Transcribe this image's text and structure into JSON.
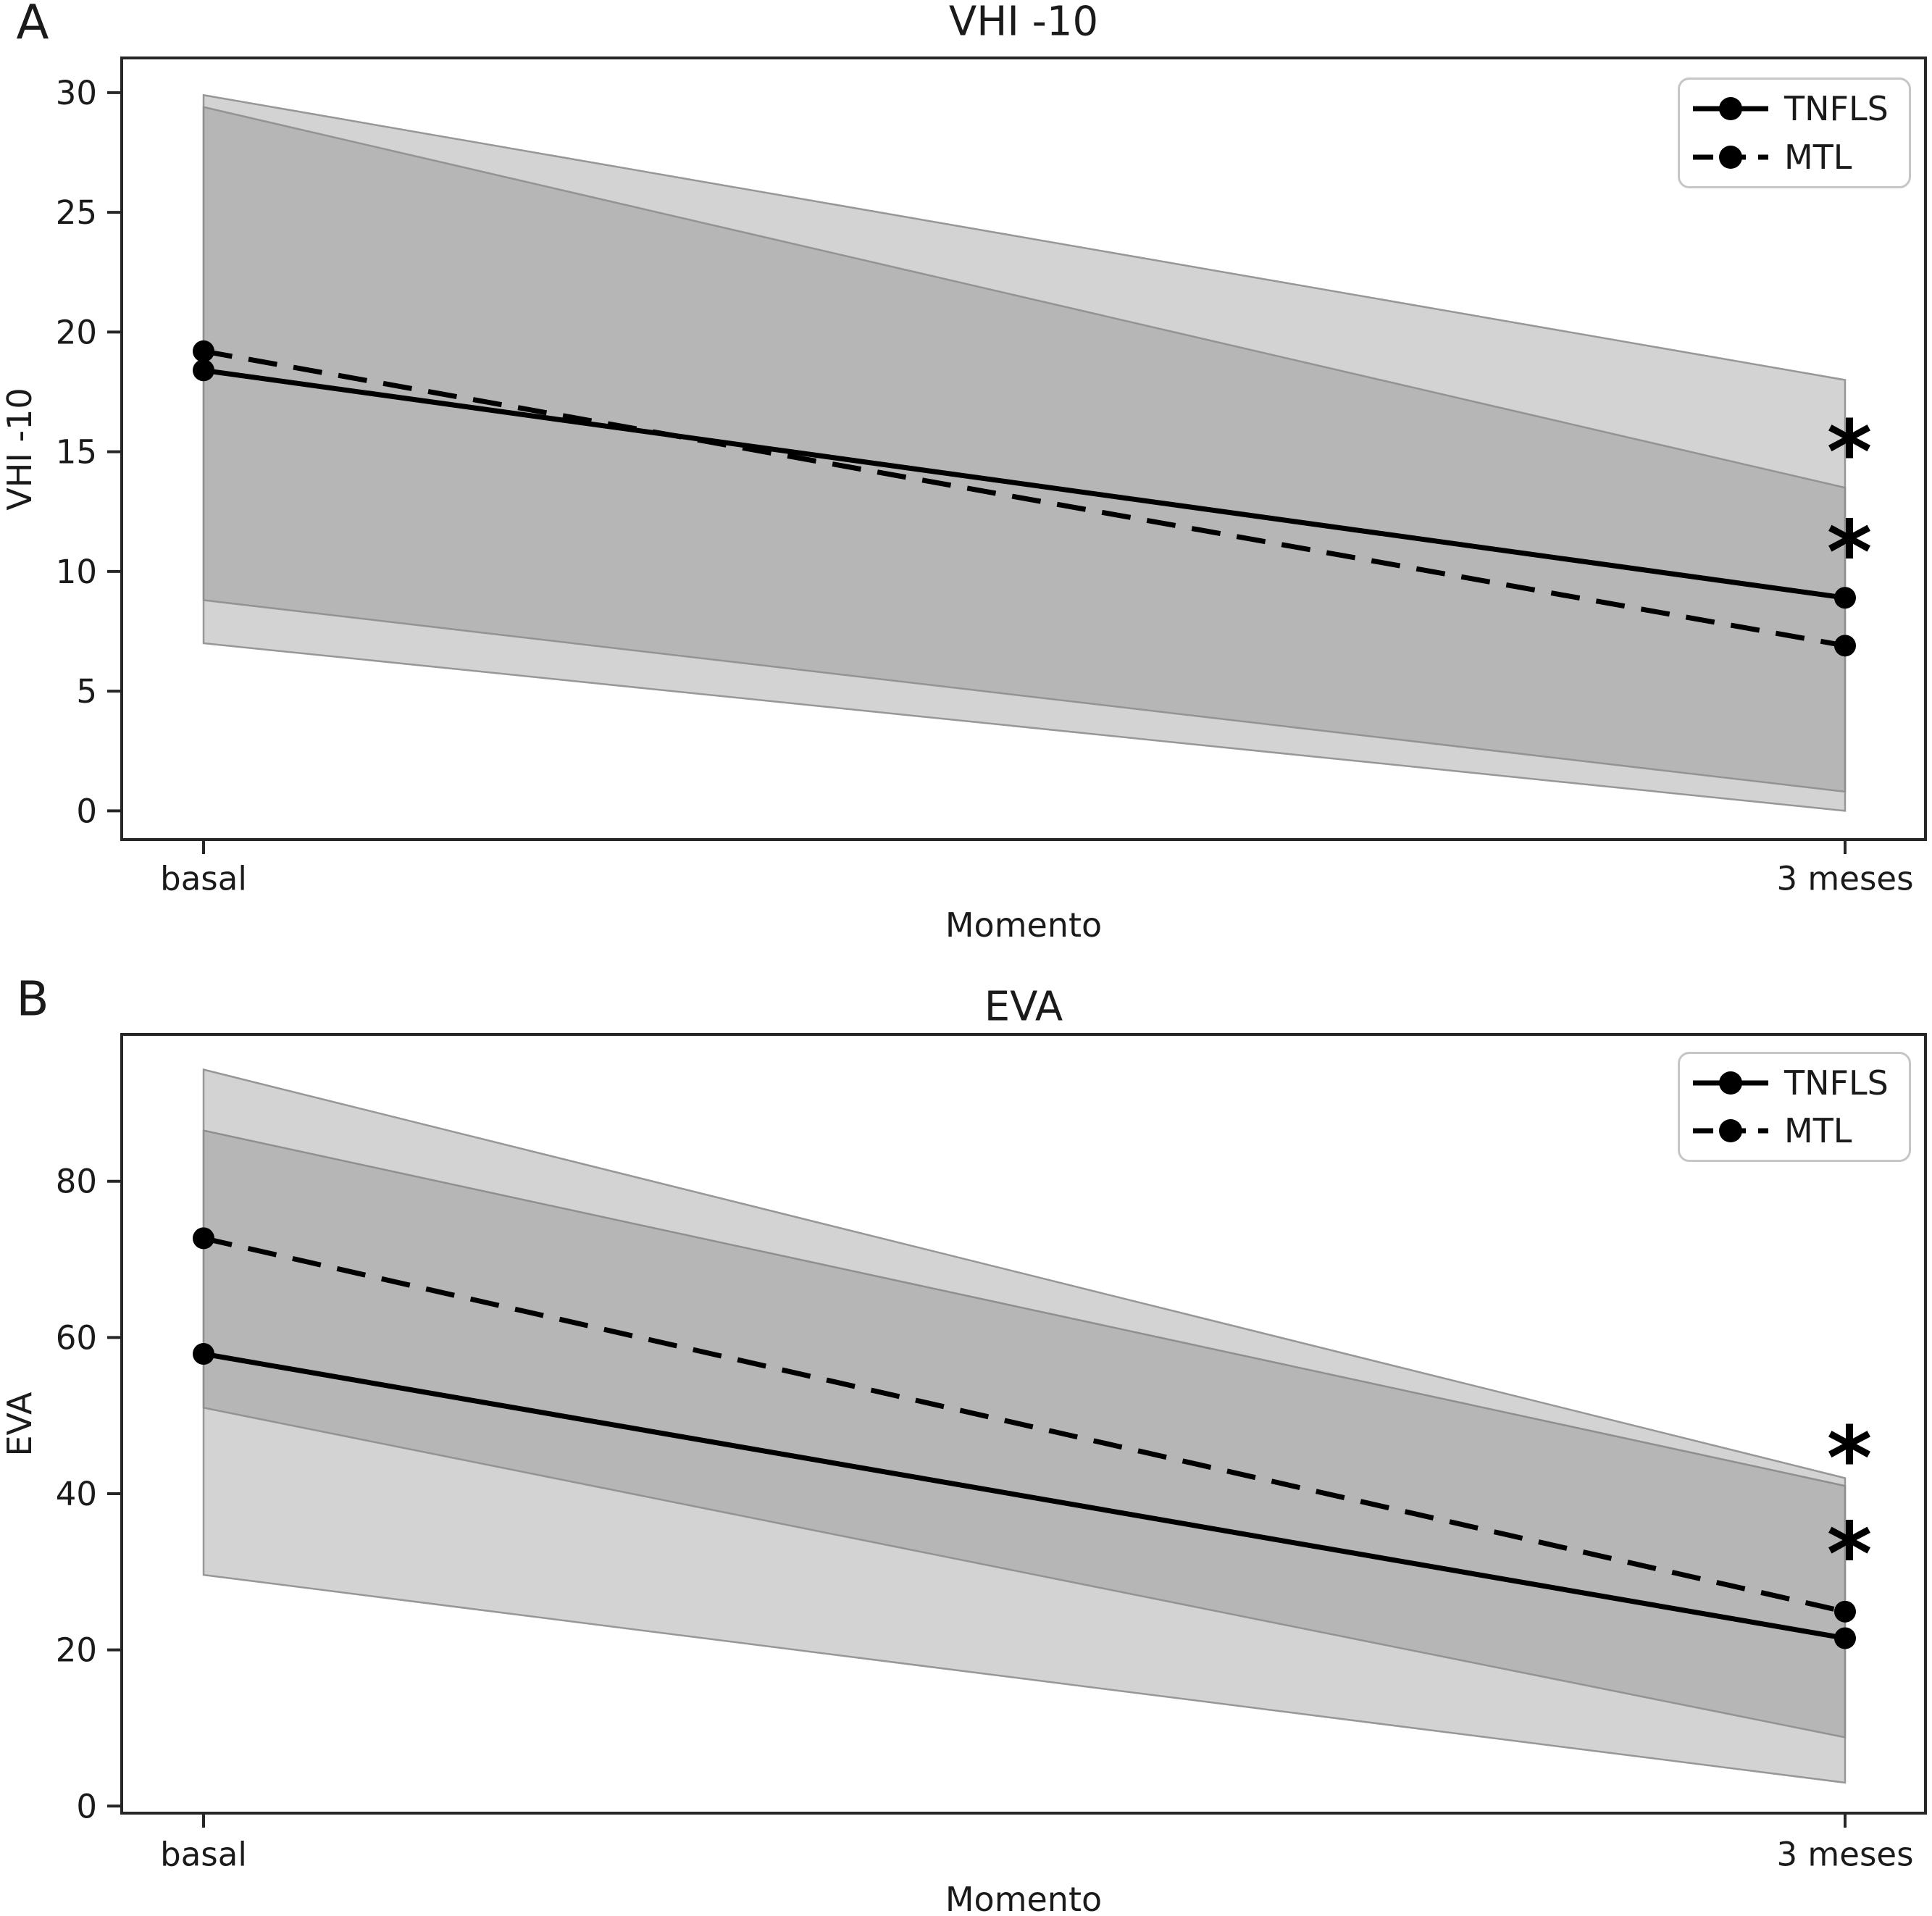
{
  "panel_letters": [
    "A",
    "B"
  ],
  "colors": {
    "band_fill": "#808080",
    "band_edge": "#8e8e8e",
    "line": "#000000",
    "spine": "#262626",
    "text": "#1a1a1a",
    "legend_border": "#c6c6c6"
  },
  "legend": {
    "position": "upper right",
    "entries": [
      {
        "label": "TNFLS",
        "line_style": "solid",
        "marker": "circle"
      },
      {
        "label": "MTL",
        "line_style": "dashed",
        "marker": "circle"
      }
    ]
  },
  "chart_data": [
    {
      "type": "line",
      "title": "VHI -10",
      "xlabel": "Momento",
      "ylabel": "VHI -10",
      "categories": [
        "basal",
        "3 meses"
      ],
      "yticks": [
        0,
        5,
        10,
        15,
        20,
        25,
        30
      ],
      "ylim": [
        -1.2,
        31.45
      ],
      "grid": false,
      "legend_position": "upper right",
      "band_alpha": 0.35,
      "series": [
        {
          "name": "TNFLS",
          "line_style": "solid",
          "marker": "circle",
          "color": "#000000",
          "values": [
            18.4,
            8.9
          ],
          "ci_lower": [
            7.0,
            0.0
          ],
          "ci_upper": [
            29.9,
            18.0
          ]
        },
        {
          "name": "MTL",
          "line_style": "dashed",
          "marker": "circle",
          "color": "#000000",
          "values": [
            19.2,
            6.9
          ],
          "ci_lower": [
            8.8,
            0.8
          ],
          "ci_upper": [
            29.4,
            13.5
          ]
        }
      ],
      "annotations": [
        {
          "text": "*",
          "x": "3 meses",
          "y": 15.6
        },
        {
          "text": "*",
          "x": "3 meses",
          "y": 11.4
        }
      ]
    },
    {
      "type": "line",
      "title": "EVA",
      "xlabel": "Momento",
      "ylabel": "EVA",
      "categories": [
        "basal",
        "3 meses"
      ],
      "yticks": [
        0,
        20,
        40,
        60,
        80
      ],
      "ylim": [
        -0.9,
        98.8
      ],
      "grid": false,
      "legend_position": "upper right",
      "band_alpha": 0.35,
      "series": [
        {
          "name": "TNFLS",
          "line_style": "solid",
          "marker": "circle",
          "color": "#000000",
          "values": [
            57.9,
            21.5
          ],
          "ci_lower": [
            29.6,
            3.0
          ],
          "ci_upper": [
            86.5,
            41.0
          ]
        },
        {
          "name": "MTL",
          "line_style": "dashed",
          "marker": "circle",
          "color": "#000000",
          "values": [
            72.7,
            24.9
          ],
          "ci_lower": [
            51.0,
            8.8
          ],
          "ci_upper": [
            94.3,
            42.0
          ]
        }
      ],
      "annotations": [
        {
          "text": "*",
          "x": "3 meses",
          "y": 46.4
        },
        {
          "text": "*",
          "x": "3 meses",
          "y": 34.1
        }
      ]
    }
  ]
}
